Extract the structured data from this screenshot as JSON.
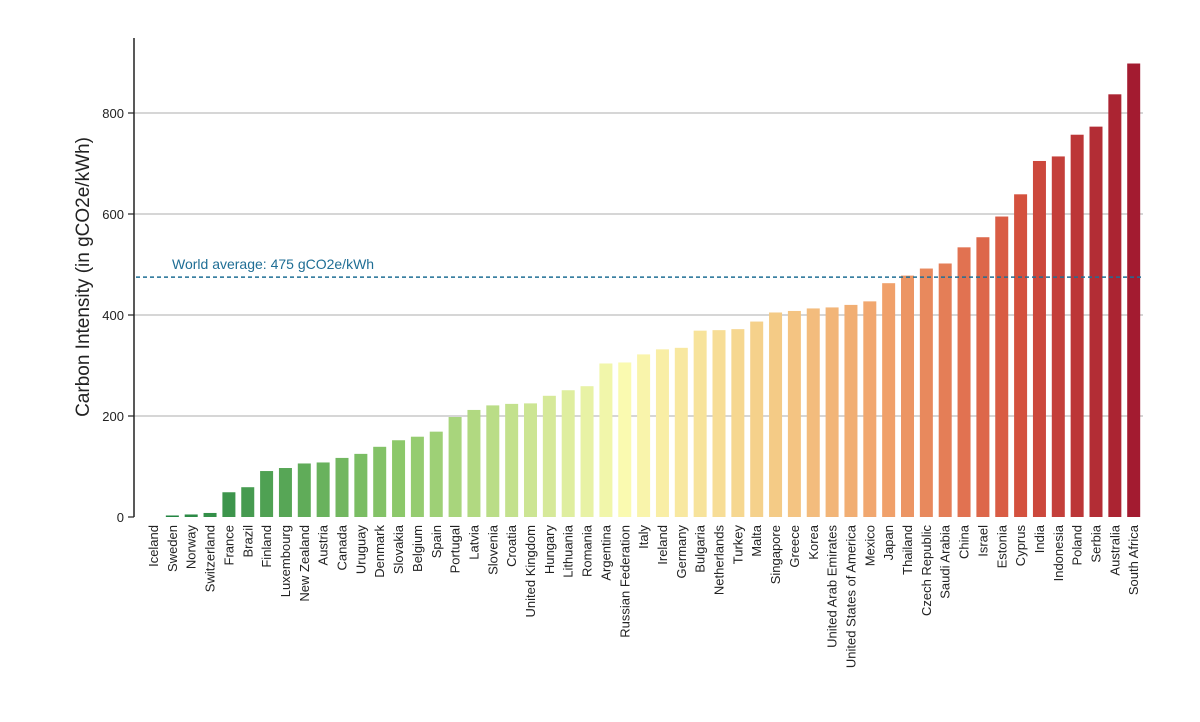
{
  "chart_data": {
    "type": "bar",
    "title": "",
    "xlabel": "",
    "ylabel": "Carbon Intensity (in gCO2e/kWh)",
    "ylim": [
      0,
      900
    ],
    "yticks": [
      0,
      200,
      400,
      600,
      800
    ],
    "grid": "horizontal",
    "categories": [
      "Iceland",
      "Sweden",
      "Norway",
      "Switzerland",
      "France",
      "Brazil",
      "Finland",
      "Luxembourg",
      "New Zealand",
      "Austria",
      "Canada",
      "Uruguay",
      "Denmark",
      "Slovakia",
      "Belgium",
      "Spain",
      "Portugal",
      "Latvia",
      "Slovenia",
      "Croatia",
      "United Kingdom",
      "Hungary",
      "Lithuania",
      "Romania",
      "Argentina",
      "Russian Federation",
      "Italy",
      "Ireland",
      "Germany",
      "Bulgaria",
      "Netherlands",
      "Turkey",
      "Malta",
      "Singapore",
      "Greece",
      "Korea",
      "United Arab Emirates",
      "United States of America",
      "Mexico",
      "Japan",
      "Thailand",
      "Czech Republic",
      "Saudi Arabia",
      "China",
      "Israel",
      "Estonia",
      "Cyprus",
      "India",
      "Indonesia",
      "Poland",
      "Serbia",
      "Australia",
      "South Africa"
    ],
    "values": [
      0,
      3,
      5,
      8,
      49,
      59,
      91,
      97,
      106,
      108,
      117,
      125,
      139,
      152,
      159,
      169,
      198,
      212,
      221,
      224,
      225,
      240,
      251,
      259,
      304,
      306,
      322,
      332,
      335,
      369,
      370,
      372,
      387,
      405,
      408,
      413,
      415,
      420,
      427,
      463,
      478,
      492,
      502,
      534,
      554,
      595,
      639,
      705,
      714,
      757,
      773,
      837,
      898
    ],
    "reference_line": {
      "value": 475,
      "label": "World average: 475 gCO2e/kWh",
      "color": "#1f6e95",
      "style": "dashed"
    },
    "colors": {
      "low": "#1a7f3f",
      "mid": "#fafab0",
      "high": "#a31b30"
    }
  }
}
